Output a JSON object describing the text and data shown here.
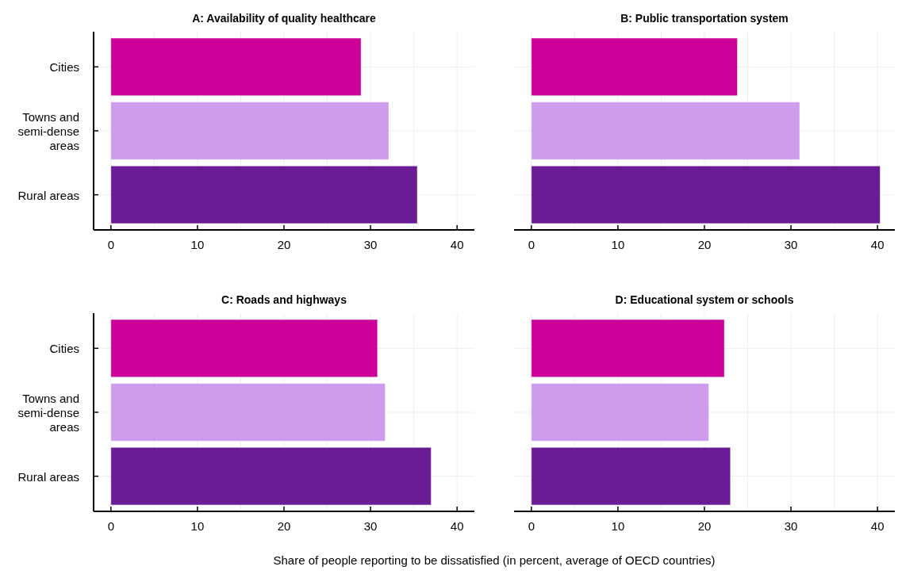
{
  "chart_data": [
    {
      "type": "bar",
      "orientation": "horizontal",
      "title": "A: Availability of quality healthcare",
      "categories": [
        "Cities",
        "Towns and semi-dense areas",
        "Rural areas"
      ],
      "values": [
        28.9,
        32.1,
        35.4
      ],
      "colors": [
        "#cc0099",
        "#cf9cec",
        "#6a1b96"
      ],
      "xlim": [
        -2,
        42
      ],
      "xticks": [
        0,
        {
          "value": 5,
          "label": null
        },
        10,
        {
          "value": 15,
          "label": null
        },
        20,
        {
          "value": 25,
          "label": null
        },
        30,
        {
          "value": 35,
          "label": null
        },
        40
      ],
      "grid": true
    },
    {
      "type": "bar",
      "orientation": "horizontal",
      "title": "B: Public transportation system",
      "categories": [
        null,
        null,
        null
      ],
      "values": [
        23.8,
        31.0,
        40.3
      ],
      "colors": [
        "#cc0099",
        "#cf9cec",
        "#6a1b96"
      ],
      "xlim": [
        -2,
        42
      ],
      "xticks": [
        0,
        {
          "value": 5,
          "label": null
        },
        10,
        {
          "value": 15,
          "label": null
        },
        20,
        {
          "value": 25,
          "label": null
        },
        30,
        {
          "value": 35,
          "label": null
        },
        40
      ],
      "grid": true,
      "tick_labels": "x"
    },
    {
      "type": "bar",
      "orientation": "horizontal",
      "title": "C: Roads and highways",
      "categories": [
        "Cities",
        "Towns and semi-dense areas",
        "Rural areas"
      ],
      "values": [
        30.8,
        31.7,
        37.0
      ],
      "colors": [
        "#cc0099",
        "#cf9cec",
        "#6a1b96"
      ],
      "xlim": [
        -2,
        42
      ],
      "xticks": [
        0,
        {
          "value": 5,
          "label": null
        },
        10,
        {
          "value": 15,
          "label": null
        },
        20,
        {
          "value": 25,
          "label": null
        },
        30,
        {
          "value": 35,
          "label": null
        },
        40
      ],
      "grid": true,
      "xlabel": "Share of people reporting to be dissatisfied (in percent, average of OECD countries)"
    },
    {
      "type": "bar",
      "orientation": "horizontal",
      "title": "D: Educational system or schools",
      "categories": [
        null,
        null,
        null
      ],
      "values": [
        22.3,
        20.5,
        23.0
      ],
      "colors": [
        "#cc0099",
        "#cf9cec",
        "#6a1b96"
      ],
      "xlim": [
        -2,
        42
      ],
      "xticks": [
        0,
        {
          "value": 5,
          "label": null
        },
        10,
        {
          "value": 15,
          "label": null
        },
        20,
        {
          "value": 25,
          "label": null
        },
        30,
        {
          "value": 35,
          "label": null
        },
        40
      ],
      "grid": true,
      "tick_labels": "x"
    }
  ]
}
